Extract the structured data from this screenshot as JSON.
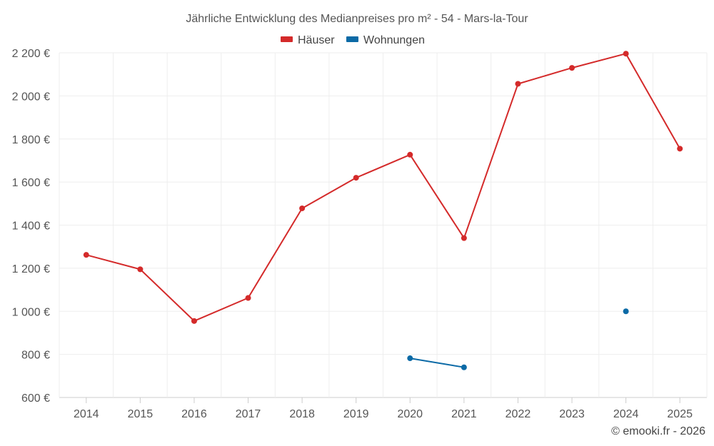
{
  "chart_data": {
    "type": "line",
    "title": "Jährliche Entwicklung des Medianpreises pro m² - 54 - Mars-la-Tour",
    "categories": [
      "2014",
      "2015",
      "2016",
      "2017",
      "2018",
      "2019",
      "2020",
      "2021",
      "2022",
      "2023",
      "2024",
      "2025"
    ],
    "y_ticks": [
      600,
      800,
      1000,
      1200,
      1400,
      1600,
      1800,
      2000,
      2200
    ],
    "y_tick_labels": [
      "600 €",
      "800 €",
      "1 000 €",
      "1 200 €",
      "1 400 €",
      "1 600 €",
      "1 800 €",
      "2 000 €",
      "2 200 €"
    ],
    "ylim": [
      600,
      2200
    ],
    "grid": true,
    "legend_position": "top-center",
    "series": [
      {
        "name": "Häuser",
        "color": "#d42a2a",
        "values": [
          1262,
          1195,
          955,
          1062,
          1478,
          1620,
          1727,
          1340,
          2056,
          2130,
          2196,
          1755
        ]
      },
      {
        "name": "Wohnungen",
        "color": "#0b6aa6",
        "values": [
          null,
          null,
          null,
          null,
          null,
          null,
          782,
          740,
          null,
          null,
          1000,
          null
        ]
      }
    ],
    "credit": "© emooki.fr - 2026"
  }
}
